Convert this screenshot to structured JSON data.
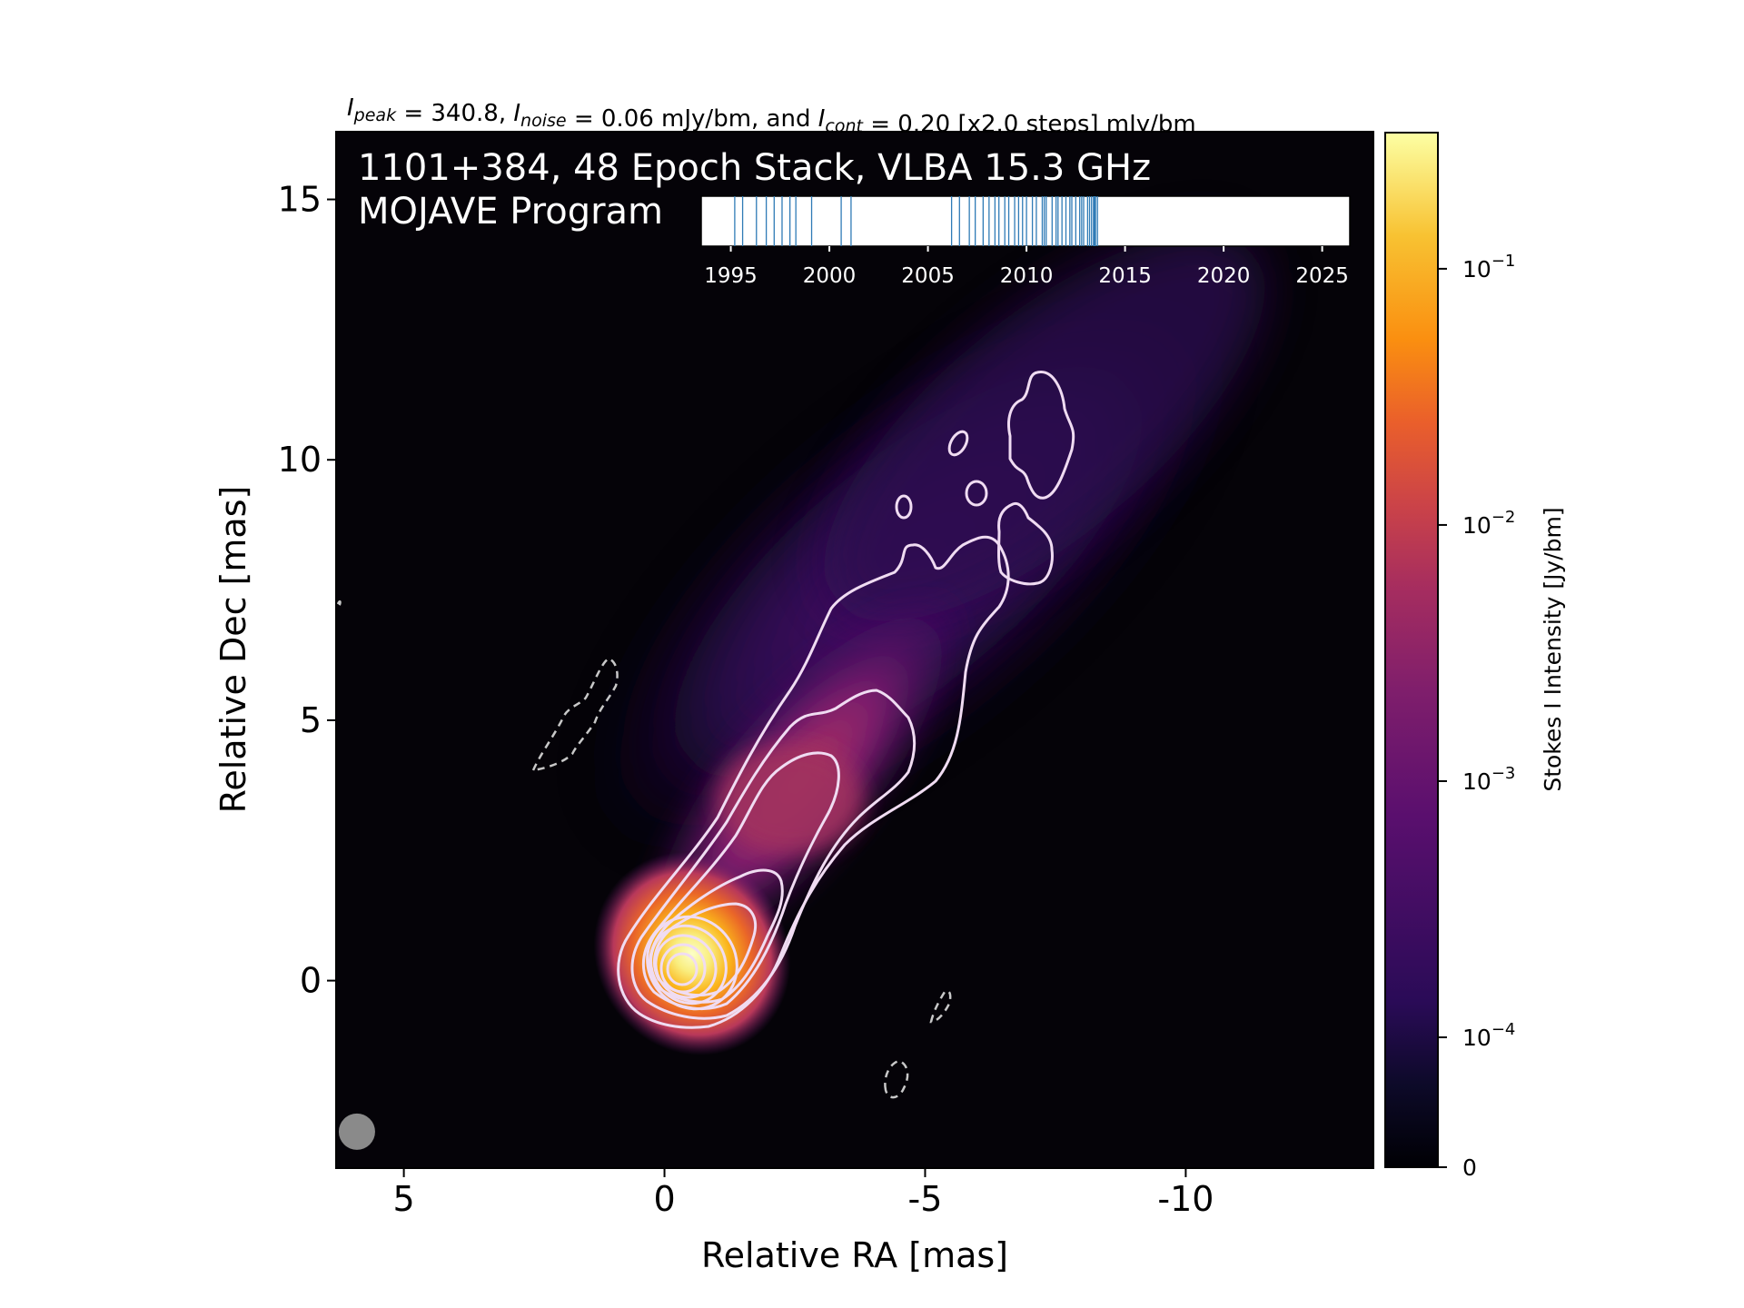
{
  "chart_data": {
    "type": "heatmap",
    "header": {
      "parts": [
        {
          "main": "I",
          "sub": "peak"
        },
        {
          "text": " = 340.8, "
        },
        {
          "main": "I",
          "sub": "noise"
        },
        {
          "text": " = 0.06 mJy/bm, and "
        },
        {
          "main": "I",
          "sub": "cont"
        },
        {
          "text": " = 0.20 [x2.0 steps] mJy/bm"
        }
      ]
    },
    "title_line1": "1101+384, 48 Epoch Stack, VLBA 15.3 GHz",
    "title_line2": "MOJAVE Program",
    "xlabel": "Relative RA [mas]",
    "ylabel": "Relative Dec [mas]",
    "xlim": [
      6.3,
      -13.6
    ],
    "ylim": [
      -3.6,
      16.3
    ],
    "xticks": [
      5,
      0,
      -5,
      -10
    ],
    "yticks": [
      0,
      5,
      10,
      15
    ],
    "colorbar": {
      "label": "Stokes I Intensity [Jy/bm]",
      "scale": "symlog",
      "ticks": [
        {
          "value": 0,
          "label": "0"
        },
        {
          "value": 0.0001,
          "base": "10",
          "exp": "−4"
        },
        {
          "value": 0.001,
          "base": "10",
          "exp": "−3"
        },
        {
          "value": 0.01,
          "base": "10",
          "exp": "−2"
        },
        {
          "value": 0.1,
          "base": "10",
          "exp": "−1"
        }
      ],
      "colormap": "inferno-like",
      "colors": [
        "#000004",
        "#1b0c41",
        "#4a0c6b",
        "#781c6d",
        "#a52c60",
        "#cf4446",
        "#ed6925",
        "#fb9b06",
        "#f7d13d",
        "#fcffa4"
      ]
    },
    "peak": {
      "x": 0,
      "y": 0,
      "value_mJy": 340.8
    },
    "beam": {
      "x": 5.9,
      "y": -2.9,
      "major_mas": 0.75,
      "minor_mas": 0.75
    },
    "epochs_timeline": {
      "xlim": [
        1993.5,
        2026.4
      ],
      "ticks": [
        1995,
        2000,
        2005,
        2010,
        2015,
        2020,
        2025
      ],
      "epochs": [
        1995.2,
        1995.6,
        1996.3,
        1996.8,
        1997.2,
        1997.6,
        1998.0,
        1998.3,
        1999.1,
        2000.6,
        2001.1,
        2006.2,
        2006.6,
        2007.1,
        2007.4,
        2007.8,
        2008.1,
        2008.4,
        2008.6,
        2009.1,
        2009.4,
        2009.8,
        2010.0,
        2010.3,
        2010.5,
        2010.8,
        2011.0,
        2011.3,
        2011.5,
        2011.8,
        2012.0,
        2012.3,
        2012.5,
        2012.7,
        2012.9,
        2013.1,
        2013.3,
        2013.4,
        2013.5,
        2013.6,
        2008.9,
        2009.6,
        2010.9,
        2011.6,
        2012.2,
        2012.8,
        2013.2,
        2013.45
      ]
    }
  }
}
